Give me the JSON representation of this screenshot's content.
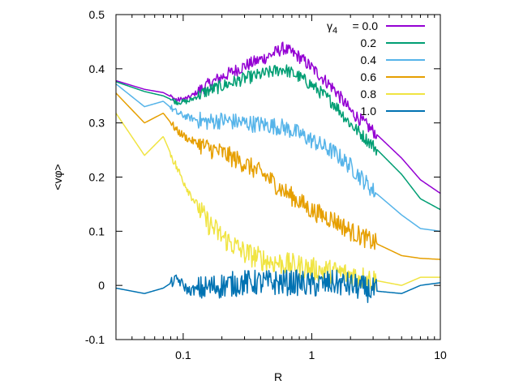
{
  "chart_data": {
    "type": "line",
    "xlabel": "R",
    "ylabel": "<vφ>",
    "xscale": "log",
    "xlim": [
      0.03,
      10
    ],
    "ylim": [
      -0.1,
      0.5
    ],
    "x_ticks": [
      {
        "value": 0.1,
        "label": "0.1"
      },
      {
        "value": 1,
        "label": "1"
      },
      {
        "value": 10,
        "label": "10"
      }
    ],
    "y_ticks": [
      {
        "value": -0.1,
        "label": "-0.1"
      },
      {
        "value": 0,
        "label": "0"
      },
      {
        "value": 0.1,
        "label": "0.1"
      },
      {
        "value": 0.2,
        "label": "0.2"
      },
      {
        "value": 0.3,
        "label": "0.3"
      },
      {
        "value": 0.4,
        "label": "0.4"
      },
      {
        "value": 0.5,
        "label": "0.5"
      }
    ],
    "grid": false,
    "legend_position": "top-right",
    "legend_title": "γ",
    "legend_title_sub": "4",
    "series": [
      {
        "name": "0.0",
        "color": "#9400d3",
        "noise": 0.012,
        "points": [
          [
            0.03,
            0.378
          ],
          [
            0.05,
            0.362
          ],
          [
            0.07,
            0.356
          ],
          [
            0.09,
            0.342
          ],
          [
            0.11,
            0.346
          ],
          [
            0.15,
            0.368
          ],
          [
            0.2,
            0.385
          ],
          [
            0.3,
            0.405
          ],
          [
            0.45,
            0.422
          ],
          [
            0.6,
            0.438
          ],
          [
            0.8,
            0.422
          ],
          [
            1.0,
            0.402
          ],
          [
            1.5,
            0.362
          ],
          [
            2.0,
            0.322
          ],
          [
            3.0,
            0.285
          ],
          [
            5.0,
            0.235
          ],
          [
            7.0,
            0.195
          ],
          [
            10.0,
            0.17
          ]
        ]
      },
      {
        "name": "0.2",
        "color": "#009e73",
        "noise": 0.012,
        "points": [
          [
            0.03,
            0.376
          ],
          [
            0.05,
            0.358
          ],
          [
            0.07,
            0.35
          ],
          [
            0.09,
            0.338
          ],
          [
            0.11,
            0.34
          ],
          [
            0.15,
            0.358
          ],
          [
            0.2,
            0.368
          ],
          [
            0.3,
            0.382
          ],
          [
            0.45,
            0.392
          ],
          [
            0.6,
            0.4
          ],
          [
            0.8,
            0.385
          ],
          [
            1.0,
            0.37
          ],
          [
            1.5,
            0.335
          ],
          [
            2.0,
            0.298
          ],
          [
            3.0,
            0.258
          ],
          [
            5.0,
            0.205
          ],
          [
            7.0,
            0.16
          ],
          [
            10.0,
            0.14
          ]
        ]
      },
      {
        "name": "0.4",
        "color": "#56b4e9",
        "noise": 0.016,
        "points": [
          [
            0.03,
            0.372
          ],
          [
            0.05,
            0.33
          ],
          [
            0.07,
            0.34
          ],
          [
            0.09,
            0.318
          ],
          [
            0.11,
            0.31
          ],
          [
            0.15,
            0.302
          ],
          [
            0.2,
            0.305
          ],
          [
            0.3,
            0.3
          ],
          [
            0.45,
            0.296
          ],
          [
            0.6,
            0.292
          ],
          [
            0.8,
            0.28
          ],
          [
            1.0,
            0.268
          ],
          [
            1.5,
            0.245
          ],
          [
            2.0,
            0.22
          ],
          [
            3.0,
            0.175
          ],
          [
            5.0,
            0.13
          ],
          [
            7.0,
            0.105
          ],
          [
            10.0,
            0.1
          ]
        ]
      },
      {
        "name": "0.6",
        "color": "#e69f00",
        "noise": 0.018,
        "points": [
          [
            0.03,
            0.355
          ],
          [
            0.05,
            0.3
          ],
          [
            0.07,
            0.318
          ],
          [
            0.09,
            0.285
          ],
          [
            0.11,
            0.27
          ],
          [
            0.15,
            0.255
          ],
          [
            0.2,
            0.245
          ],
          [
            0.3,
            0.225
          ],
          [
            0.45,
            0.2
          ],
          [
            0.6,
            0.175
          ],
          [
            0.8,
            0.155
          ],
          [
            1.0,
            0.138
          ],
          [
            1.5,
            0.12
          ],
          [
            2.0,
            0.1
          ],
          [
            3.0,
            0.08
          ],
          [
            5.0,
            0.055
          ],
          [
            7.0,
            0.05
          ],
          [
            10.0,
            0.048
          ]
        ]
      },
      {
        "name": "0.8",
        "color": "#f0e442",
        "noise": 0.022,
        "points": [
          [
            0.03,
            0.318
          ],
          [
            0.05,
            0.24
          ],
          [
            0.07,
            0.275
          ],
          [
            0.09,
            0.215
          ],
          [
            0.11,
            0.175
          ],
          [
            0.15,
            0.12
          ],
          [
            0.2,
            0.09
          ],
          [
            0.3,
            0.06
          ],
          [
            0.45,
            0.045
          ],
          [
            0.6,
            0.04
          ],
          [
            0.8,
            0.035
          ],
          [
            1.0,
            0.03
          ],
          [
            1.5,
            0.025
          ],
          [
            2.0,
            0.02
          ],
          [
            3.0,
            0.01
          ],
          [
            5.0,
            0.0
          ],
          [
            7.0,
            0.015
          ],
          [
            10.0,
            0.015
          ]
        ]
      },
      {
        "name": "1.0",
        "color": "#0072b2",
        "noise": 0.024,
        "points": [
          [
            0.03,
            -0.005
          ],
          [
            0.05,
            -0.015
          ],
          [
            0.07,
            -0.005
          ],
          [
            0.09,
            0.012
          ],
          [
            0.11,
            -0.01
          ],
          [
            0.15,
            -0.005
          ],
          [
            0.2,
            0.0
          ],
          [
            0.3,
            0.005
          ],
          [
            0.45,
            0.005
          ],
          [
            0.6,
            0.005
          ],
          [
            0.8,
            0.005
          ],
          [
            1.0,
            0.0
          ],
          [
            1.5,
            0.005
          ],
          [
            2.0,
            0.0
          ],
          [
            3.0,
            -0.01
          ],
          [
            5.0,
            -0.015
          ],
          [
            7.0,
            0.0
          ],
          [
            10.0,
            0.005
          ]
        ]
      }
    ]
  }
}
